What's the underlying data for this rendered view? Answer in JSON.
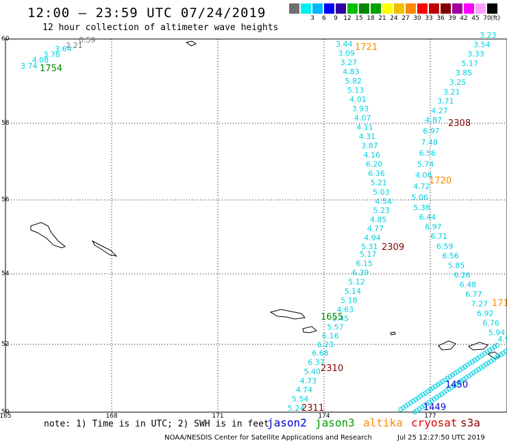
{
  "header": {
    "title": "12:00 – 23:59 UTC 07/24/2019",
    "subtitle": "12 hour collection of altimeter wave heights"
  },
  "legend": {
    "unit": "(ft)",
    "items": [
      {
        "color": "#707070",
        "label": ""
      },
      {
        "color": "#00f0f0",
        "label": "3"
      },
      {
        "color": "#00b8ff",
        "label": "6"
      },
      {
        "color": "#0000ff",
        "label": "9"
      },
      {
        "color": "#3000a0",
        "label": "12"
      },
      {
        "color": "#00c000",
        "label": "15"
      },
      {
        "color": "#008800",
        "label": "18"
      },
      {
        "color": "#00a000",
        "label": "21"
      },
      {
        "color": "#ffff00",
        "label": "24"
      },
      {
        "color": "#f0c000",
        "label": "27"
      },
      {
        "color": "#ff8800",
        "label": "30"
      },
      {
        "color": "#ff0000",
        "label": "33"
      },
      {
        "color": "#c00000",
        "label": "36"
      },
      {
        "color": "#800000",
        "label": "39"
      },
      {
        "color": "#a000a0",
        "label": "42"
      },
      {
        "color": "#ff00ff",
        "label": "45"
      },
      {
        "color": "#ffa0ff",
        "label": "70"
      },
      {
        "color": "#000000",
        "label": ""
      }
    ]
  },
  "axes": {
    "lat_labels": [
      "60",
      "58",
      "56",
      "54",
      "52",
      "50"
    ],
    "lon_labels": [
      "165",
      "168",
      "171",
      "174",
      "177"
    ]
  },
  "tracks": [
    {
      "color": "#00d0e0",
      "values": [
        "3.44",
        "3.09",
        "3.27",
        "4.83",
        "5.82",
        "5.13",
        "4.01",
        "3.93",
        "4.07",
        "4.11",
        "4.31",
        "3.87",
        "4.16",
        "6.20",
        "6.36",
        "5.21",
        "5.03",
        "4.54",
        "5.23",
        "4.85",
        "4.77",
        "4.94",
        "5.31"
      ]
    },
    {
      "color": "#00d0e0",
      "values": [
        "3.23",
        "3.54",
        "3.33",
        "5.17",
        "3.85",
        "3.25",
        "3.21",
        "3.71",
        "4.27",
        "4.87",
        "6.97",
        "7.48",
        "6.56",
        "5.74",
        "4.06",
        "4.72",
        "5.06",
        "5.38",
        "6.44",
        "6.97",
        "6.71",
        "6.59",
        "6.56",
        "5.85",
        "6.26",
        "6.48",
        "6.77",
        "7.27",
        "6.92",
        "6.76",
        "5.94",
        "4.96",
        "4.54"
      ]
    },
    {
      "color": "#00d0e0",
      "values": [
        "5.17",
        "6.15",
        "6.39",
        "5.12",
        "5.14",
        "5.18",
        "4.63",
        "5.45",
        "5.57",
        "6.16",
        "6.23",
        "6.68",
        "6.37",
        "5.40",
        "4.73",
        "4.74",
        "5.54",
        "5.24"
      ]
    },
    {
      "color": "#707070",
      "values": [
        "0.59",
        "2.21"
      ]
    },
    {
      "color": "#00d0e0",
      "values": [
        "3.64",
        "3.78",
        "4.08",
        "3.74"
      ]
    }
  ],
  "time_labels": [
    {
      "text": "1721",
      "color": "#ff8800"
    },
    {
      "text": "1754",
      "color": "#008800"
    },
    {
      "text": "2308",
      "color": "#800000"
    },
    {
      "text": "1720",
      "color": "#ff8800"
    },
    {
      "text": "2309",
      "color": "#800000"
    },
    {
      "text": "171",
      "color": "#ff8800"
    },
    {
      "text": "1655",
      "color": "#008800"
    },
    {
      "text": "2310",
      "color": "#800000"
    },
    {
      "text": "2311",
      "color": "#800000"
    },
    {
      "text": "1450",
      "color": "#0000cc"
    },
    {
      "text": "1449",
      "color": "#0000cc"
    }
  ],
  "footer": {
    "note": "note: 1) Time is in UTC; 2) SWH is in feet",
    "satellites": [
      {
        "name": "jason2",
        "color": "#0000dd"
      },
      {
        "name": "jason3",
        "color": "#009900"
      },
      {
        "name": "altika",
        "color": "#ff8800"
      },
      {
        "name": "cryosat",
        "color": "#dd0000"
      },
      {
        "name": "s3a",
        "color": "#880000"
      }
    ],
    "credit": "NOAA/NESDIS Center for Satellite Applications and Research",
    "timestamp": "Jul 25 12:27:50 UTC 2019"
  }
}
